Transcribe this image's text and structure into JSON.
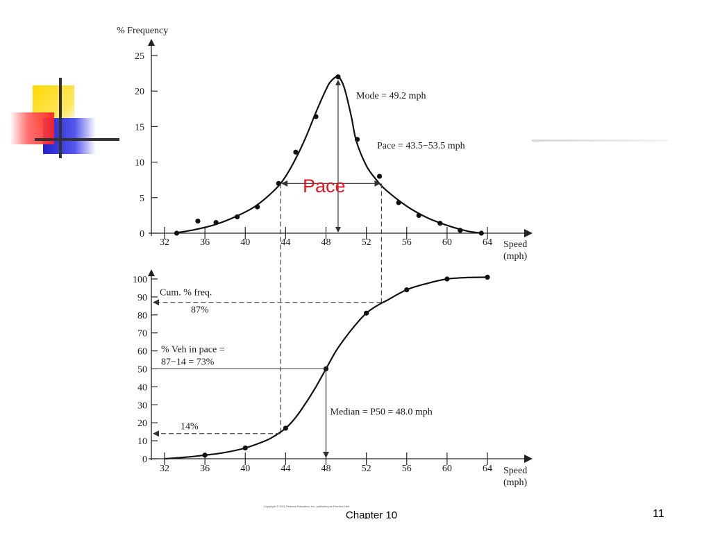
{
  "slide": {
    "number": "11",
    "chapter": "Chapter 10",
    "copyright": "Copyright © 2011 Pearson Education, Inc. publishing as Prentice Hall",
    "accent_colors": {
      "yellow": "#FFD700",
      "red": "#FF3333",
      "blue": "#2828CC",
      "line": "#333333"
    }
  },
  "chart_data": [
    {
      "type": "line",
      "title": "",
      "ylabel": "% Frequency",
      "xlabel": "Speed (mph)",
      "xlabel_lines": [
        "Speed",
        "(mph)"
      ],
      "xticks": [
        32,
        36,
        40,
        44,
        48,
        52,
        56,
        60,
        64
      ],
      "yticks": [
        0,
        5,
        10,
        15,
        20,
        25
      ],
      "xlim": [
        31,
        68
      ],
      "ylim": [
        0,
        26
      ],
      "points": {
        "x": [
          33.2,
          35.3,
          37.1,
          39.2,
          41.2,
          43.3,
          45.0,
          47.0,
          49.2,
          51.1,
          53.3,
          55.2,
          57.2,
          59.3,
          61.3,
          63.4
        ],
        "y": [
          0,
          1.7,
          1.5,
          2.3,
          3.7,
          7.0,
          11.4,
          16.4,
          22.0,
          13.2,
          8.0,
          4.3,
          2.5,
          1.4,
          0.4,
          0
        ]
      },
      "curve": {
        "x": [
          33,
          35,
          37,
          39,
          41,
          43,
          44,
          45,
          46,
          47,
          48,
          48.5,
          49.2,
          49.8,
          50.5,
          51,
          52,
          53,
          54,
          56,
          58,
          60,
          62,
          63.5
        ],
        "y": [
          0,
          0.5,
          1.2,
          2.3,
          3.8,
          6.2,
          8.0,
          10.5,
          13.5,
          17.0,
          20.2,
          21.4,
          22.0,
          20.5,
          16.5,
          13.0,
          9.5,
          7.5,
          6.0,
          3.8,
          2.2,
          1.1,
          0.3,
          0
        ]
      },
      "annotations": {
        "mode": "Mode = 49.2 mph",
        "pace_range": "Pace = 43.5−53.5 mph",
        "pace": "Pace"
      },
      "mode_speed": 49.2,
      "pace_range": [
        43.5,
        53.5
      ],
      "pace_y": 7,
      "pace_label_color": "#E8141E"
    },
    {
      "type": "line",
      "title": "",
      "ylabel": "",
      "xlabel": "Speed (mph)",
      "xlabel_lines": [
        "Speed",
        "(mph)"
      ],
      "xticks": [
        32,
        36,
        40,
        44,
        48,
        52,
        56,
        60,
        64
      ],
      "yticks": [
        0,
        10,
        20,
        30,
        40,
        50,
        60,
        70,
        80,
        90,
        100
      ],
      "xlim": [
        31,
        68
      ],
      "ylim": [
        0,
        104
      ],
      "points": {
        "x": [
          36,
          40,
          44,
          48,
          52,
          56,
          60,
          64
        ],
        "y": [
          2,
          6,
          17,
          50,
          81,
          94,
          100,
          101
        ]
      },
      "curve": {
        "x": [
          32,
          34,
          36,
          38,
          40,
          42,
          43,
          44,
          45,
          46,
          47,
          48,
          49,
          50,
          51,
          52,
          53,
          54,
          56,
          58,
          60,
          62,
          64
        ],
        "y": [
          0,
          0.8,
          2.0,
          3.5,
          6.0,
          10.0,
          13.0,
          17.0,
          23.0,
          31.0,
          40.0,
          50.0,
          60.0,
          68.0,
          75.0,
          81.0,
          85.0,
          88.0,
          94.0,
          97.5,
          100.0,
          100.8,
          101.0
        ]
      },
      "annotations": {
        "cum_freq": "Cum. % freq.",
        "cum_value": "87%",
        "veh_pace_1": "% Veh in pace =",
        "veh_pace_2": "87−14 = 73%",
        "median": "Median = P50 = 48.0 mph",
        "low_pct": "14%"
      },
      "cum_high": 87,
      "cum_low": 14,
      "median_speed": 48.0
    }
  ]
}
